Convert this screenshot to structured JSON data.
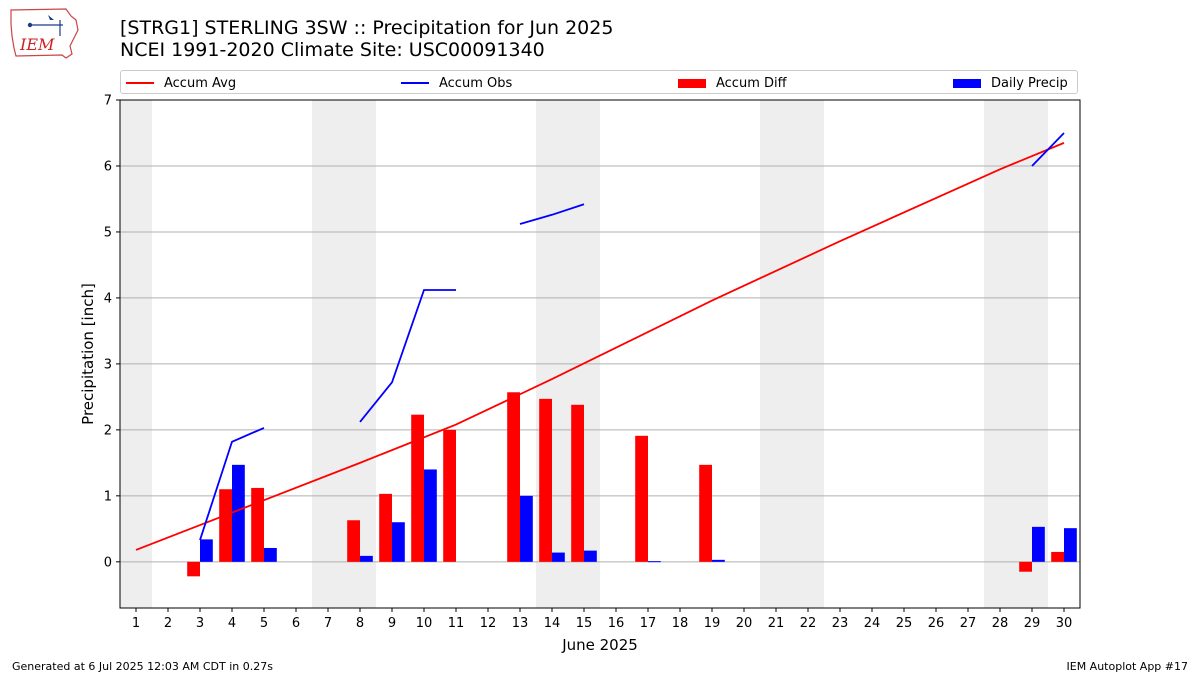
{
  "header": {
    "logo_text": "IEM",
    "title_line1": "[STRG1] STERLING 3SW :: Precipitation for Jun 2025",
    "title_line2": "NCEI 1991-2020 Climate Site: USC00091340"
  },
  "footer": {
    "left": "Generated at 6 Jul 2025 12:03 AM CDT in 0.27s",
    "right": "IEM Autoplot App #17"
  },
  "colors": {
    "accum_avg": "#ff0000",
    "accum_obs": "#0000ff",
    "accum_diff": "#ff0000",
    "daily_precip": "#0000ff",
    "weekend_shade": "#eeeeee",
    "grid": "#b0b0b0"
  },
  "chart_data": {
    "type": "bar",
    "xlabel": "June 2025",
    "ylabel": "Precipitation [inch]",
    "ylim": [
      -0.7,
      7
    ],
    "xlim": [
      0.5,
      30.5
    ],
    "yticks": [
      0,
      1,
      2,
      3,
      4,
      5,
      6,
      7
    ],
    "xticks": [
      1,
      2,
      3,
      4,
      5,
      6,
      7,
      8,
      9,
      10,
      11,
      12,
      13,
      14,
      15,
      16,
      17,
      18,
      19,
      20,
      21,
      22,
      23,
      24,
      25,
      26,
      27,
      28,
      29,
      30
    ],
    "grid": "horizontal",
    "legend_position": "top",
    "legend": [
      "Accum Avg",
      "Accum Obs",
      "Accum Diff",
      "Daily Precip"
    ],
    "shaded_days": [
      [
        0.5,
        1.5
      ],
      [
        6.5,
        8.5
      ],
      [
        13.5,
        15.5
      ],
      [
        20.5,
        22.5
      ],
      [
        27.5,
        29.5
      ]
    ],
    "accum_avg": {
      "days": [
        1,
        8,
        11,
        14,
        19,
        23,
        28,
        30
      ],
      "values": [
        0.18,
        1.5,
        2.08,
        2.77,
        3.96,
        4.86,
        5.95,
        6.35
      ]
    },
    "accum_obs": {
      "segments": [
        {
          "days": [
            3,
            4,
            5
          ],
          "values": [
            0.33,
            1.82,
            2.03
          ]
        },
        {
          "days": [
            8,
            9,
            10,
            11
          ],
          "values": [
            2.12,
            2.72,
            4.12,
            4.12
          ]
        },
        {
          "days": [
            13,
            14,
            15
          ],
          "values": [
            5.12,
            5.26,
            5.42
          ]
        },
        {
          "days": [
            29,
            30
          ],
          "values": [
            6.0,
            6.5
          ]
        }
      ]
    },
    "accum_diff": {
      "days": [
        3,
        4,
        5,
        8,
        9,
        10,
        11,
        13,
        14,
        15,
        17,
        19,
        29,
        30
      ],
      "values": [
        -0.22,
        1.1,
        1.12,
        0.63,
        1.03,
        2.23,
        2.0,
        2.57,
        2.47,
        2.38,
        1.91,
        1.47,
        -0.15,
        0.15
      ]
    },
    "daily_precip": {
      "days": [
        3,
        4,
        5,
        8,
        9,
        10,
        13,
        14,
        15,
        17,
        19,
        29,
        30
      ],
      "values": [
        0.34,
        1.47,
        0.21,
        0.09,
        0.6,
        1.4,
        1.0,
        0.14,
        0.17,
        0.01,
        0.03,
        0.53,
        0.51
      ]
    }
  }
}
